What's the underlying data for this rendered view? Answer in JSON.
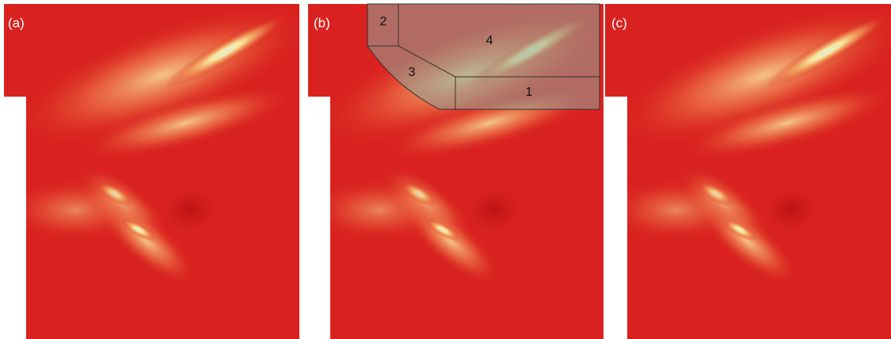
{
  "panels": [
    {
      "label": "(a)"
    },
    {
      "label": "(b)"
    },
    {
      "label": "(c)"
    }
  ],
  "regions": [
    {
      "label": "1"
    },
    {
      "label": "2"
    },
    {
      "label": "3"
    },
    {
      "label": "4"
    }
  ]
}
